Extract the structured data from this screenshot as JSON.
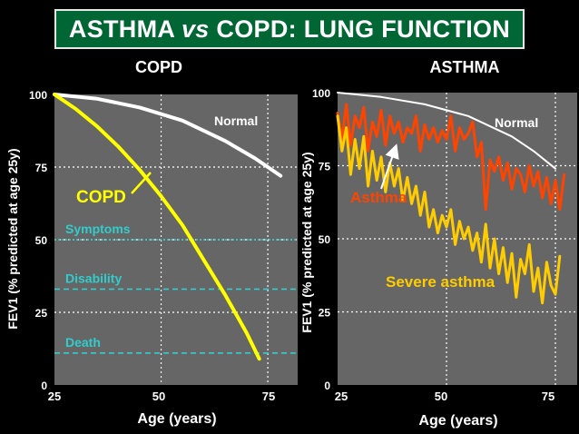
{
  "page": {
    "title_part1": "ASTHMA ",
    "title_italic": "vs",
    "title_part2": " COPD: LUNG FUNCTION"
  },
  "colors": {
    "background": "#000000",
    "title_bg": "#006633",
    "plot_bg": "#666666",
    "normal_line": "#ffffff",
    "copd_line": "#ffff00",
    "asthma_line": "#ff4400",
    "severe_line": "#ffcc00",
    "threshold_line": "#33cccc"
  },
  "chart_data": [
    {
      "type": "line",
      "title": "COPD",
      "xlabel": "Age (years)",
      "ylabel": "FEV1 (% predicted at age 25y)",
      "xlim": [
        25,
        82
      ],
      "ylim": [
        0,
        100
      ],
      "xticks": [
        25,
        50,
        75
      ],
      "yticks": [
        0,
        25,
        50,
        75,
        100
      ],
      "grid": true,
      "series": [
        {
          "name": "Normal",
          "color": "#ffffff",
          "x": [
            25,
            35,
            45,
            55,
            65,
            72,
            78
          ],
          "y": [
            100,
            98.5,
            95.5,
            91,
            84,
            78,
            72
          ]
        },
        {
          "name": "COPD",
          "color": "#ffff00",
          "x": [
            25,
            30,
            35,
            40,
            45,
            50,
            55,
            60,
            65,
            70,
            73
          ],
          "y": [
            100,
            95,
            89,
            82,
            74,
            65,
            55,
            43,
            31,
            18,
            9
          ]
        }
      ],
      "thresholds": [
        {
          "label": "Symptoms",
          "value": 50
        },
        {
          "label": "Disability",
          "value": 33
        },
        {
          "label": "Death",
          "value": 11
        }
      ],
      "series_labels": {
        "Normal": "Normal",
        "COPD": "COPD"
      }
    },
    {
      "type": "line",
      "title": "ASTHMA",
      "xlabel": "Age (years)",
      "ylabel": "FEV1 (% predicted at age 25y)",
      "xlim": [
        25,
        80
      ],
      "ylim": [
        0,
        100
      ],
      "xticks": [
        25,
        50,
        75
      ],
      "yticks": [
        0,
        25,
        50,
        75,
        100
      ],
      "grid": true,
      "series": [
        {
          "name": "Normal",
          "color": "#ffffff",
          "x": [
            25,
            35,
            45,
            55,
            65,
            70,
            75
          ],
          "y": [
            100,
            98.5,
            96,
            92,
            85,
            80,
            74
          ]
        },
        {
          "name": "Asthma",
          "color": "#ff4400",
          "x": [
            25,
            26,
            27,
            28,
            29,
            30,
            31,
            32,
            33,
            34,
            35,
            36,
            37,
            38,
            39,
            40,
            41,
            42,
            43,
            44,
            45,
            46,
            47,
            48,
            49,
            50,
            51,
            52,
            53,
            54,
            55,
            56,
            57,
            58,
            59,
            60,
            61,
            62,
            63,
            64,
            65,
            66,
            67,
            68,
            69,
            70,
            71,
            72,
            73,
            74,
            75,
            76,
            77
          ],
          "y": [
            93,
            84,
            96,
            82,
            92,
            88,
            95,
            80,
            90,
            85,
            94,
            82,
            92,
            86,
            90,
            83,
            88,
            86,
            92,
            80,
            89,
            84,
            88,
            83,
            87,
            84,
            92,
            80,
            88,
            84,
            86,
            90,
            78,
            83,
            60,
            77,
            73,
            78,
            70,
            76,
            67,
            74,
            72,
            66,
            75,
            68,
            73,
            64,
            71,
            62,
            70,
            60,
            72
          ]
        },
        {
          "name": "Severe asthma",
          "color": "#ffcc00",
          "x": [
            25,
            26,
            27,
            28,
            29,
            30,
            31,
            32,
            33,
            34,
            35,
            36,
            37,
            38,
            39,
            40,
            41,
            42,
            43,
            44,
            45,
            46,
            47,
            48,
            49,
            50,
            51,
            52,
            53,
            54,
            55,
            56,
            57,
            58,
            59,
            60,
            61,
            62,
            63,
            64,
            65,
            66,
            67,
            68,
            69,
            70,
            71,
            72,
            73,
            74,
            75,
            76
          ],
          "y": [
            92,
            80,
            88,
            72,
            84,
            74,
            85,
            68,
            80,
            70,
            78,
            66,
            76,
            68,
            74,
            63,
            71,
            62,
            68,
            58,
            66,
            54,
            60,
            52,
            58,
            54,
            60,
            48,
            56,
            50,
            54,
            46,
            52,
            42,
            55,
            40,
            50,
            38,
            47,
            35,
            45,
            30,
            43,
            38,
            48,
            32,
            40,
            28,
            42,
            34,
            31,
            44
          ]
        }
      ],
      "series_labels": {
        "Normal": "Normal",
        "Asthma": "Asthma",
        "Severe asthma": "Severe asthma"
      }
    }
  ]
}
